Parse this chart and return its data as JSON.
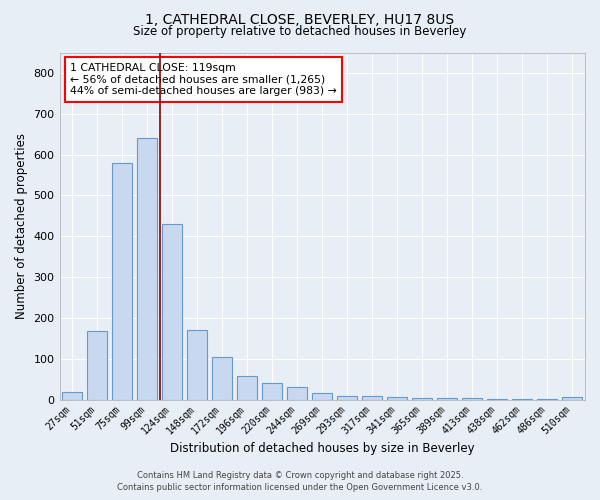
{
  "title1": "1, CATHEDRAL CLOSE, BEVERLEY, HU17 8US",
  "title2": "Size of property relative to detached houses in Beverley",
  "xlabel": "Distribution of detached houses by size in Beverley",
  "ylabel": "Number of detached properties",
  "categories": [
    "27sqm",
    "51sqm",
    "75sqm",
    "99sqm",
    "124sqm",
    "148sqm",
    "172sqm",
    "196sqm",
    "220sqm",
    "244sqm",
    "269sqm",
    "293sqm",
    "317sqm",
    "341sqm",
    "365sqm",
    "389sqm",
    "413sqm",
    "438sqm",
    "462sqm",
    "486sqm",
    "510sqm"
  ],
  "values": [
    18,
    168,
    580,
    640,
    430,
    170,
    105,
    57,
    40,
    30,
    15,
    10,
    8,
    7,
    5,
    4,
    3,
    2,
    1,
    1,
    6
  ],
  "bar_color": "#c8d8ee",
  "bar_edge_color": "#6699cc",
  "red_line_x": 3.5,
  "annotation_title": "1 CATHEDRAL CLOSE: 119sqm",
  "annotation_line1": "← 56% of detached houses are smaller (1,265)",
  "annotation_line2": "44% of semi-detached houses are larger (983) →",
  "footer1": "Contains HM Land Registry data © Crown copyright and database right 2025.",
  "footer2": "Contains public sector information licensed under the Open Government Licence v3.0.",
  "ylim": [
    0,
    850
  ],
  "background_color": "#e8eef5",
  "grid_color": "#ffffff"
}
